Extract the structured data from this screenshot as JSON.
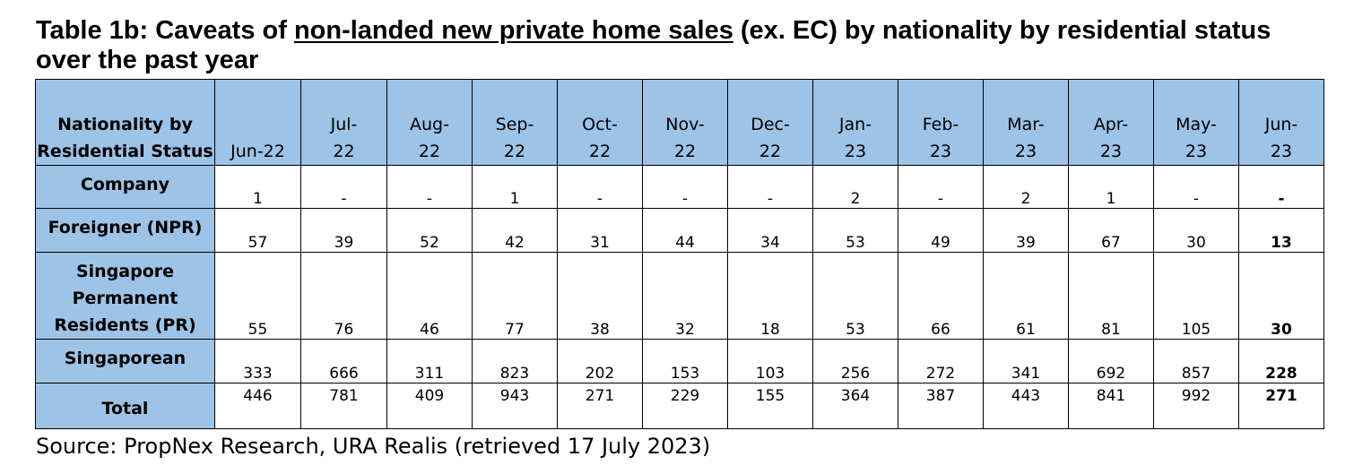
{
  "title": {
    "prefix": "Table 1b: Caveats of ",
    "underlined": "non-landed new private home sales",
    "suffix": " (ex. EC) by nationality by residential status over the past year"
  },
  "table": {
    "corner_label": "Nationality by Residential Status",
    "months": [
      "Jun-22",
      "Jul-22",
      "Aug-22",
      "Sep-22",
      "Oct-22",
      "Nov-22",
      "Dec-22",
      "Jan-23",
      "Feb-23",
      "Mar-23",
      "Apr-23",
      "May-23",
      "Jun-23"
    ],
    "rows": [
      {
        "label": "Company",
        "values": [
          "1",
          "-",
          "-",
          "1",
          "-",
          "-",
          "-",
          "2",
          "-",
          "2",
          "1",
          "-",
          "-"
        ]
      },
      {
        "label": "Foreigner (NPR)",
        "values": [
          "57",
          "39",
          "52",
          "42",
          "31",
          "44",
          "34",
          "53",
          "49",
          "39",
          "67",
          "30",
          "13"
        ]
      },
      {
        "label": "Singapore Permanent Residents (PR)",
        "values": [
          "55",
          "76",
          "46",
          "77",
          "38",
          "32",
          "18",
          "53",
          "66",
          "61",
          "81",
          "105",
          "30"
        ]
      },
      {
        "label": "Singaporean",
        "values": [
          "333",
          "666",
          "311",
          "823",
          "202",
          "153",
          "103",
          "256",
          "272",
          "341",
          "692",
          "857",
          "228"
        ]
      },
      {
        "label": "Total",
        "values": [
          "446",
          "781",
          "409",
          "943",
          "271",
          "229",
          "155",
          "364",
          "387",
          "443",
          "841",
          "992",
          "271"
        ]
      }
    ]
  },
  "source": "Source: PropNex Research, URA Realis (retrieved 17 July 2023)",
  "colors": {
    "header_fill": "#9dc3e6",
    "border": "#000000"
  }
}
